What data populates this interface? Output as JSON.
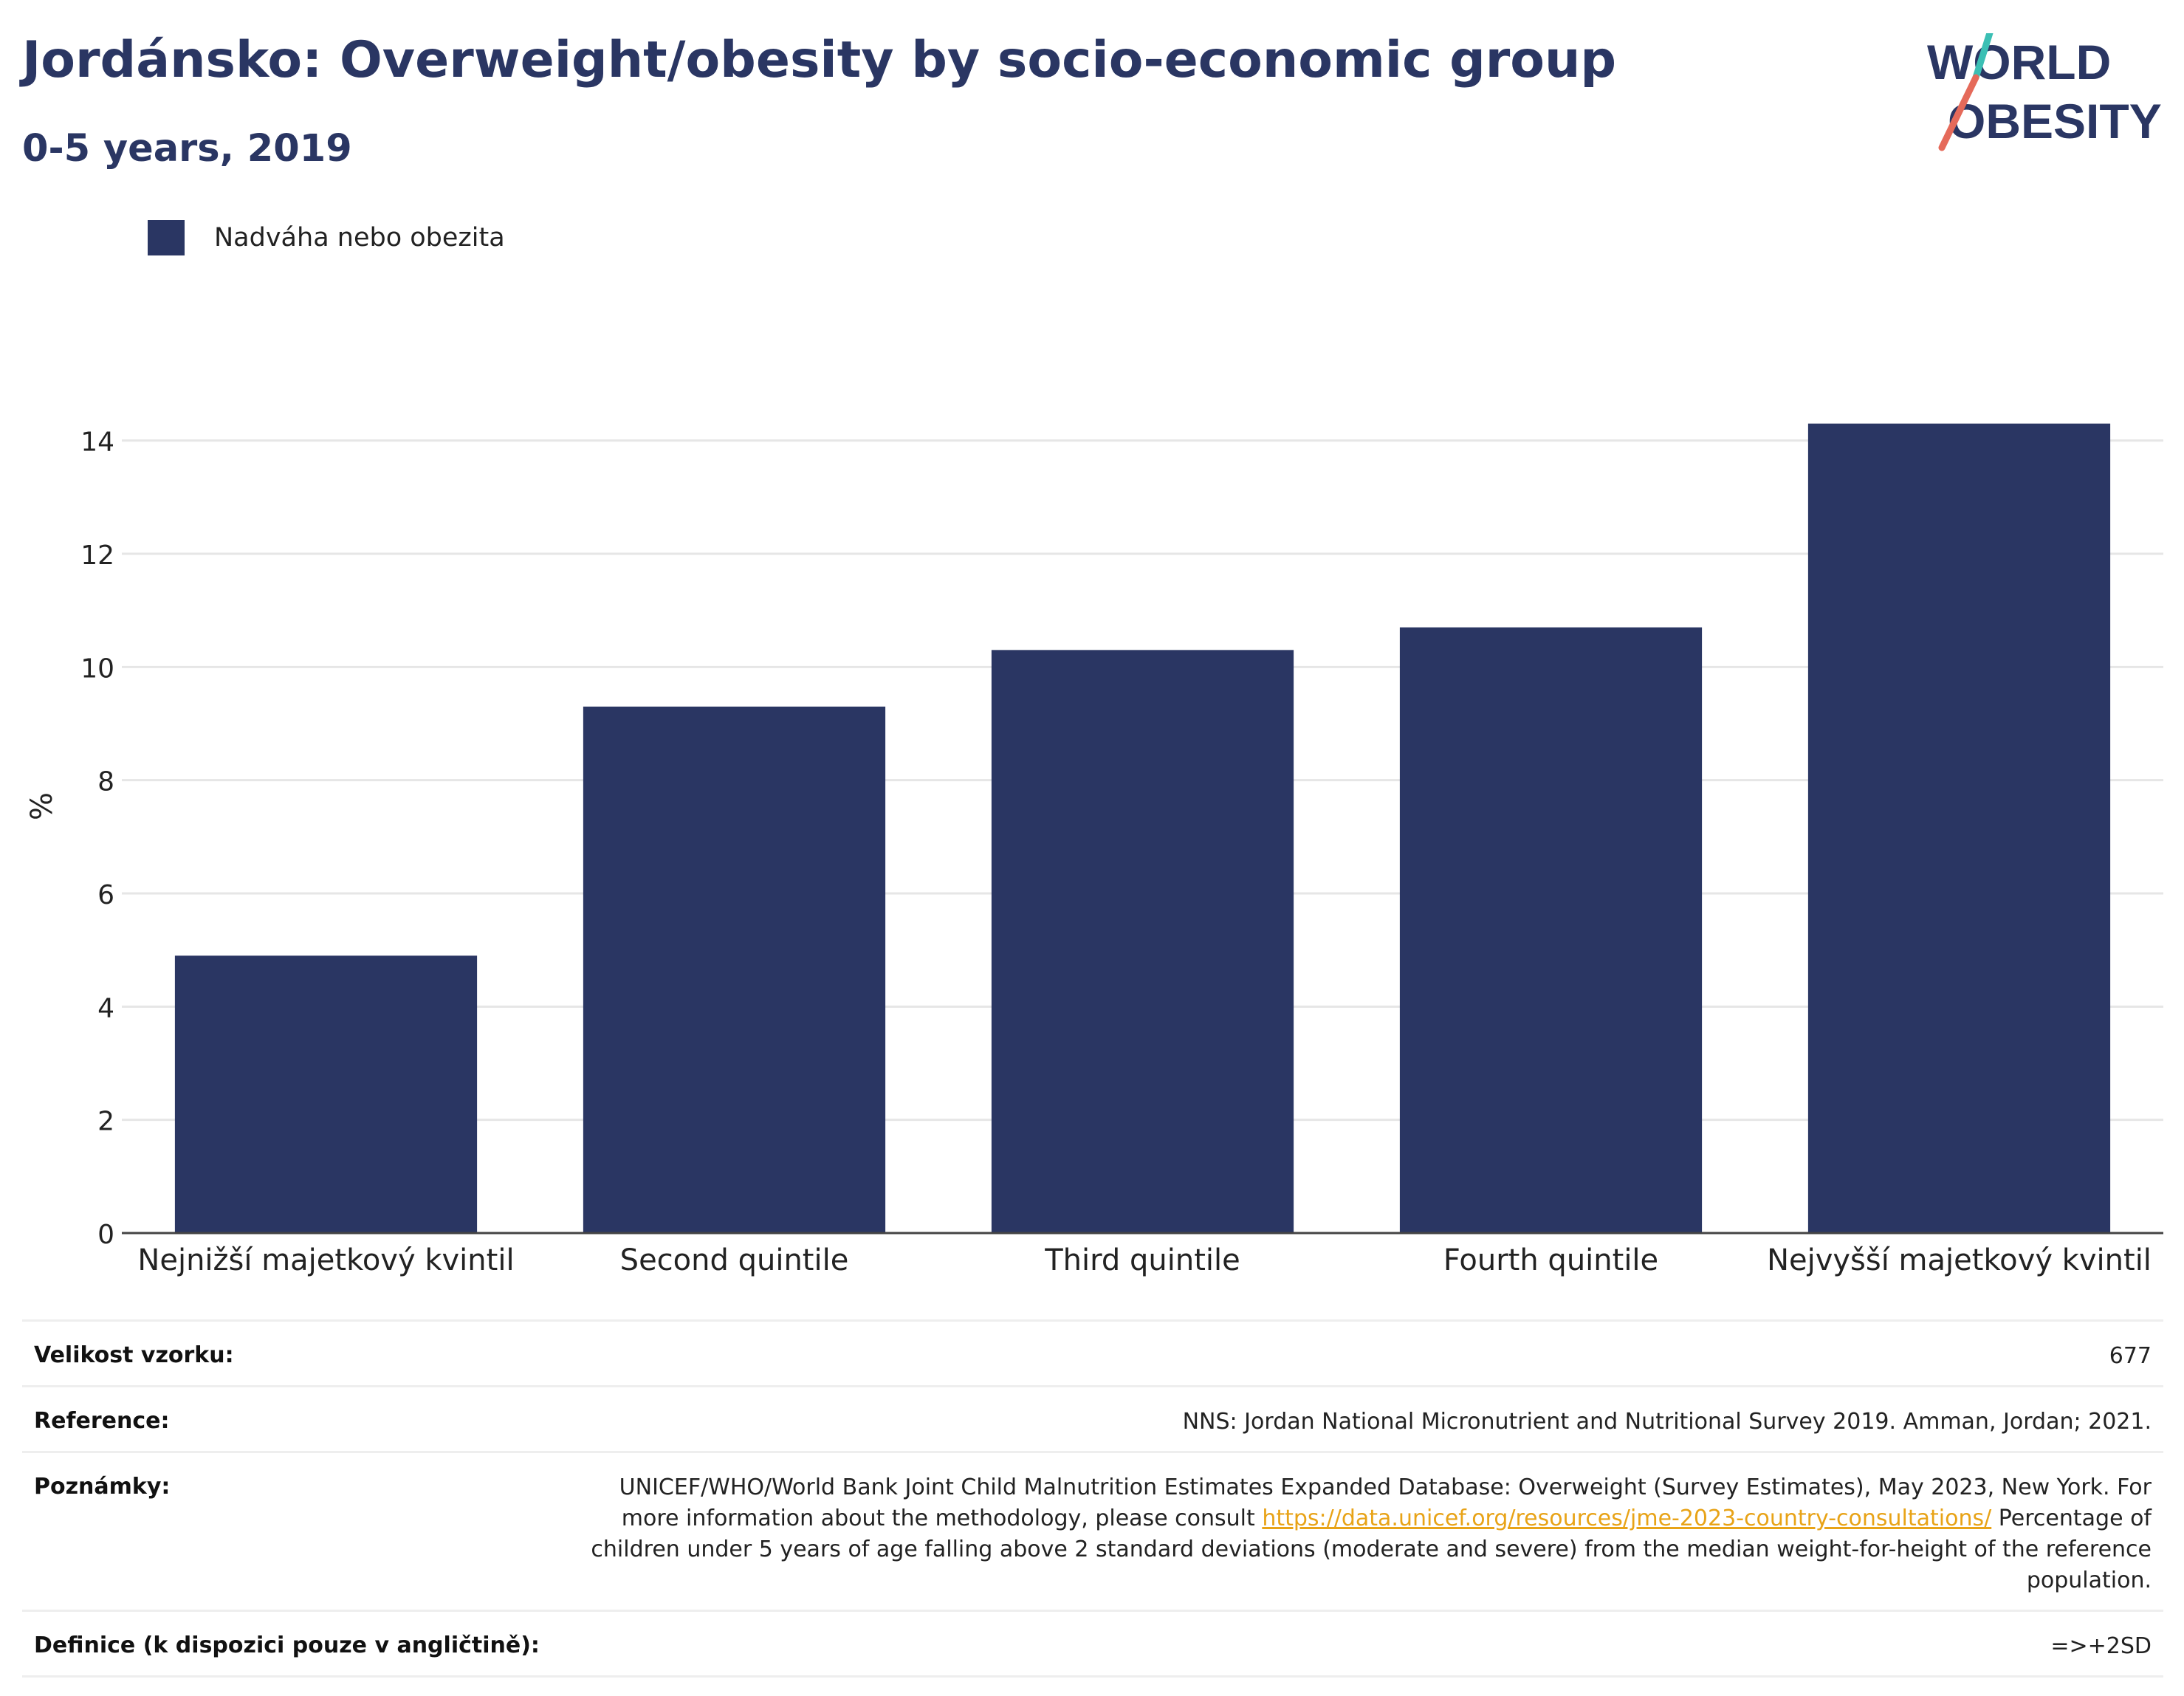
{
  "header": {
    "title": "Jordánsko: Overweight/obesity by socio-economic group",
    "subtitle": "0-5 years, 2019"
  },
  "logo": {
    "line1": "WORLD",
    "line2": "OBESITY",
    "colors": {
      "text": "#2a3663",
      "slash_top": "#3bbfb4",
      "slash_bottom": "#e56a5a"
    }
  },
  "legend": {
    "label": "Nadváha nebo obezita",
    "color": "#2a3663"
  },
  "chart_data": {
    "type": "bar",
    "categories": [
      "Nejnižší majetkový kvintil",
      "Second quintile",
      "Third quintile",
      "Fourth quintile",
      "Nejvyšší majetkový kvintil"
    ],
    "series": [
      {
        "name": "Nadváha nebo obezita",
        "values": [
          4.9,
          9.3,
          10.3,
          10.7,
          14.3
        ],
        "color": "#2a3663"
      }
    ],
    "ylabel": "%",
    "xlabel": "",
    "ylim": [
      0,
      15
    ],
    "yticks": [
      0,
      2,
      4,
      6,
      8,
      10,
      12,
      14
    ],
    "grid": true,
    "legend_position": "top-left"
  },
  "info": [
    {
      "key": "Velikost vzorku:",
      "value": "677"
    },
    {
      "key": "Reference:",
      "value": "NNS: Jordan National Micronutrient and Nutritional Survey 2019. Amman, Jordan; 2021."
    },
    {
      "key": "Poznámky:",
      "value_before": "UNICEF/WHO/World Bank Joint Child Malnutrition Estimates Expanded Database: Overweight (Survey Estimates), May 2023, New York. For more information about the methodology, please consult ",
      "link": "https://data.unicef.org/resources/jme-2023-country-consultations/",
      "value_after": " Percentage of children under 5 years of age falling above 2 standard deviations (moderate and severe) from the median weight-for-height of the reference population."
    },
    {
      "key": "Definice (k dispozici pouze v angličtině):",
      "value": "=>+2SD"
    }
  ]
}
